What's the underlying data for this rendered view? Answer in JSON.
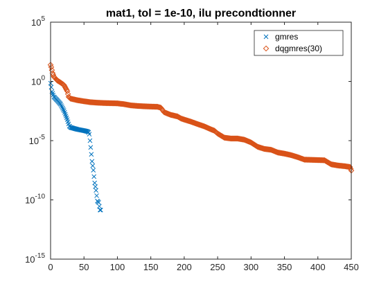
{
  "chart_data": {
    "type": "scatter",
    "title": "mat1, tol = 1e-10, ilu precondtionner",
    "xlabel": "",
    "ylabel": "",
    "xlim": [
      0,
      450
    ],
    "ylim": [
      1e-15,
      100000.0
    ],
    "yscale": "log",
    "xticks": [
      0,
      50,
      100,
      150,
      200,
      250,
      300,
      350,
      400,
      450
    ],
    "yticks": [
      1e-15,
      1e-10,
      1e-05,
      1,
      100000.0
    ],
    "ytick_labels": [
      {
        "base": "10",
        "exp": "-15"
      },
      {
        "base": "10",
        "exp": "-10"
      },
      {
        "base": "10",
        "exp": "-5"
      },
      {
        "base": "10",
        "exp": "0"
      },
      {
        "base": "10",
        "exp": "5"
      }
    ],
    "grid": false,
    "legend_position": "top-right",
    "series": [
      {
        "name": "gmres",
        "marker": "x",
        "color": "#0072BD",
        "anchors": [
          [
            0,
            0.71
          ],
          [
            1,
            0.33
          ],
          [
            2,
            0.14
          ],
          [
            5,
            0.05
          ],
          [
            10,
            0.025
          ],
          [
            15,
            0.0117
          ],
          [
            20,
            0.0034
          ],
          [
            25,
            0.0006
          ],
          [
            28,
            0.00017
          ],
          [
            30,
            0.00013
          ],
          [
            40,
            9e-05
          ],
          [
            50,
            7e-05
          ],
          [
            55,
            6e-05
          ],
          [
            57,
            5e-05
          ],
          [
            58,
            3.5e-05
          ],
          [
            59,
            1e-05
          ],
          [
            60,
            2.7e-06
          ],
          [
            62,
            1.8e-07
          ],
          [
            64,
            3.2e-08
          ],
          [
            66,
            2.7e-09
          ],
          [
            68,
            6.4e-10
          ],
          [
            70,
            8e-11
          ],
          [
            72,
            6e-11
          ],
          [
            74,
            1.4e-11
          ],
          [
            75,
            1.4e-11
          ]
        ]
      },
      {
        "name": "dqgmres(30)",
        "marker": "diamond",
        "color": "#D95319",
        "anchors": [
          [
            0,
            25
          ],
          [
            1,
            16
          ],
          [
            3,
            5
          ],
          [
            5,
            2.5
          ],
          [
            10,
            1.2
          ],
          [
            15,
            0.8
          ],
          [
            20,
            0.5
          ],
          [
            25,
            0.15
          ],
          [
            27,
            0.05
          ],
          [
            30,
            0.035
          ],
          [
            40,
            0.026
          ],
          [
            50,
            0.021
          ],
          [
            60,
            0.0175
          ],
          [
            70,
            0.016
          ],
          [
            80,
            0.015
          ],
          [
            100,
            0.014
          ],
          [
            110,
            0.012
          ],
          [
            120,
            0.0095
          ],
          [
            130,
            0.0085
          ],
          [
            140,
            0.0079
          ],
          [
            150,
            0.0075
          ],
          [
            160,
            0.0072
          ],
          [
            165,
            0.006
          ],
          [
            170,
            0.0025
          ],
          [
            180,
            0.0015
          ],
          [
            190,
            0.0011
          ],
          [
            195,
            0.00075
          ],
          [
            200,
            0.0006
          ],
          [
            210,
            0.0004
          ],
          [
            220,
            0.00025
          ],
          [
            230,
            0.00016
          ],
          [
            240,
            9e-05
          ],
          [
            245,
            7e-05
          ],
          [
            250,
            4e-05
          ],
          [
            260,
            1.8e-05
          ],
          [
            270,
            1.5e-05
          ],
          [
            280,
            1.5e-05
          ],
          [
            290,
            1.2e-05
          ],
          [
            300,
            7e-06
          ],
          [
            310,
            3e-06
          ],
          [
            320,
            2e-06
          ],
          [
            330,
            1.7e-06
          ],
          [
            340,
            1e-06
          ],
          [
            350,
            8e-07
          ],
          [
            360,
            6e-07
          ],
          [
            370,
            4e-07
          ],
          [
            380,
            2.5e-07
          ],
          [
            390,
            2.4e-07
          ],
          [
            400,
            2.3e-07
          ],
          [
            410,
            2.2e-07
          ],
          [
            420,
            1e-07
          ],
          [
            430,
            8e-08
          ],
          [
            440,
            7e-08
          ],
          [
            448,
            6e-08
          ],
          [
            450,
            3e-08
          ]
        ]
      }
    ]
  }
}
